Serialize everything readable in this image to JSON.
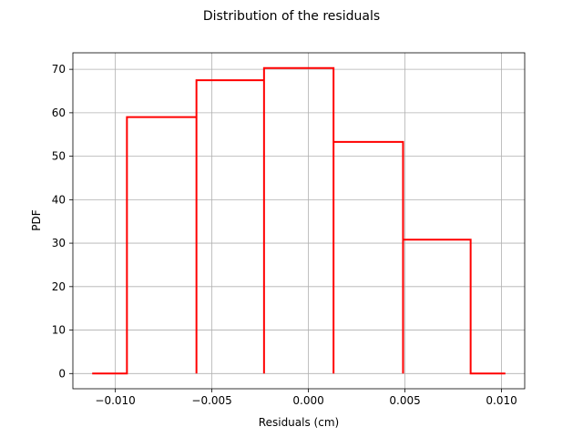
{
  "chart_data": {
    "type": "line",
    "title": "Distribution of the residuals",
    "xlabel": "Residuals (cm)",
    "ylabel": "PDF",
    "xlim": [
      -0.0122,
      0.0112
    ],
    "ylim": [
      -3.5,
      73.8
    ],
    "xticks": [
      -0.01,
      -0.005,
      0.0,
      0.005,
      0.01
    ],
    "xtick_labels": [
      "−0.010",
      "−0.005",
      "0.000",
      "0.005",
      "0.010"
    ],
    "yticks": [
      0,
      10,
      20,
      30,
      40,
      50,
      60,
      70
    ],
    "ytick_labels": [
      "0",
      "10",
      "20",
      "30",
      "40",
      "50",
      "60",
      "70"
    ],
    "grid": true,
    "series": [
      {
        "color": "#ff0000",
        "step_points": [
          [
            -0.0112,
            0
          ],
          [
            -0.0094,
            0
          ],
          [
            -0.0094,
            59.0
          ],
          [
            -0.0058,
            59.0
          ],
          [
            -0.0058,
            0
          ],
          [
            -0.0058,
            67.5
          ],
          [
            -0.0023,
            67.5
          ],
          [
            -0.0023,
            0
          ],
          [
            -0.0023,
            70.3
          ],
          [
            0.0013,
            70.3
          ],
          [
            0.0013,
            0
          ],
          [
            0.0013,
            53.3
          ],
          [
            0.0049,
            53.3
          ],
          [
            0.0049,
            0
          ],
          [
            0.0049,
            30.8
          ],
          [
            0.0084,
            30.8
          ],
          [
            0.0084,
            0
          ],
          [
            0.0102,
            0
          ]
        ]
      }
    ]
  }
}
